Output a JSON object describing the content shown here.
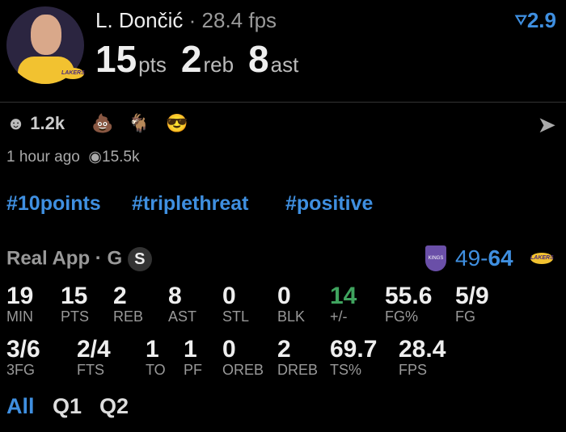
{
  "header": {
    "player": "L. Dončić",
    "separator": "·",
    "fps": "28.4 fps",
    "pts": "15",
    "pts_label": "pts",
    "reb": "2",
    "reb_label": "reb",
    "ast": "8",
    "ast_label": "ast",
    "rank": "2.9",
    "team_logo": "LAKERS"
  },
  "social": {
    "reactions": [
      {
        "icon": "smiley-icon",
        "count": "1.2k"
      },
      {
        "icon": "poop-emoji"
      },
      {
        "icon": "goat-emoji"
      },
      {
        "icon": "sunglasses-face-emoji"
      }
    ],
    "time": "1 hour ago",
    "views": "15.5k"
  },
  "hashtags": [
    "#10points",
    "#triplethreat",
    "#positive"
  ],
  "game": {
    "source": "Real App",
    "position": "G",
    "badge": "S",
    "away_logo": "KINGS",
    "score_away": "49",
    "score_sep": "-",
    "score_home": "64",
    "home_logo": "LAKERS"
  },
  "stats_row1": [
    {
      "v": "19",
      "l": "MIN"
    },
    {
      "v": "15",
      "l": "PTS"
    },
    {
      "v": "2",
      "l": "REB"
    },
    {
      "v": "8",
      "l": "AST"
    },
    {
      "v": "0",
      "l": "STL"
    },
    {
      "v": "0",
      "l": "BLK"
    },
    {
      "v": "14",
      "l": "+/-"
    },
    {
      "v": "55.6",
      "l": "FG%"
    },
    {
      "v": "5/9",
      "l": "FG"
    }
  ],
  "stats_row2": [
    {
      "v": "3/6",
      "l": "3FG"
    },
    {
      "v": "2/4",
      "l": "FTS"
    },
    {
      "v": "1",
      "l": "TO"
    },
    {
      "v": "1",
      "l": "PF"
    },
    {
      "v": "0",
      "l": "OREB"
    },
    {
      "v": "2",
      "l": "DREB"
    },
    {
      "v": "69.7",
      "l": "TS%"
    },
    {
      "v": "28.4",
      "l": "FPS"
    }
  ],
  "periods": [
    "All",
    "Q1",
    "Q2"
  ],
  "colors": {
    "accent": "#3f8fe0",
    "positive": "#3fa35e"
  }
}
